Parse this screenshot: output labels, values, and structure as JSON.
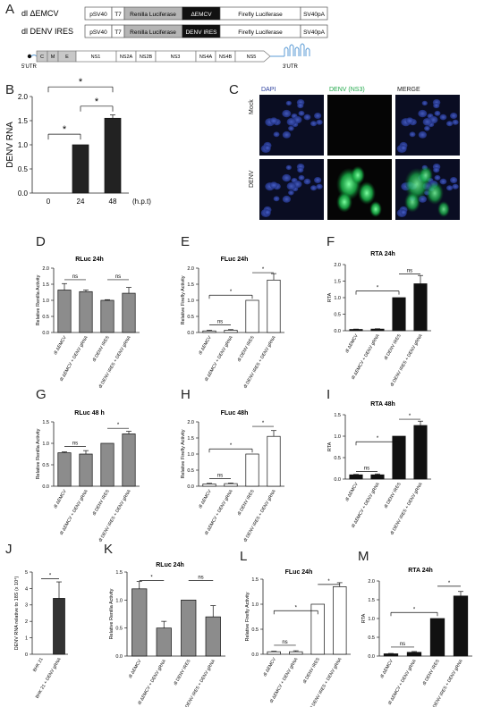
{
  "panel_letters": [
    "A",
    "B",
    "C",
    "D",
    "E",
    "F",
    "G",
    "H",
    "I",
    "J",
    "K",
    "L",
    "M"
  ],
  "constructs": {
    "row1": {
      "name": "dl ΔEMCV",
      "boxes": [
        "pSV40",
        "T7",
        "Renilla Luciferase",
        "ΔEMCV",
        "Firefly Luciferase",
        "SV40pA"
      ]
    },
    "row2": {
      "name": "dl DENV IRES",
      "boxes": [
        "pSV40",
        "T7",
        "Renilla Luciferase",
        "DENV IRES",
        "Firefly Luciferase",
        "SV40pA"
      ]
    },
    "genome": {
      "segments": [
        "C",
        "M",
        "E",
        "NS1",
        "NS2A",
        "NS2B",
        "NS3",
        "NS4A",
        "NS4B",
        "NS5"
      ],
      "utr5": "5'UTR",
      "utr3": "3'UTR"
    }
  },
  "micro": {
    "cols": [
      "DAPI",
      "DENV (NS3)",
      "MERGE"
    ],
    "rows": [
      "Mock",
      "DENV"
    ],
    "colors": {
      "dapi": "#2a3fa8",
      "ns3": "#22cc55",
      "title_blue": "#2b3f9e",
      "title_green": "#21a84a"
    }
  },
  "xlabels_dl": [
    "dl ΔEMCV",
    "dl ΔEMCV + DENV gRNA",
    "dl DENV IRES",
    "dl DENV IRES + DENV gRNA"
  ],
  "chart_data": [
    {
      "id": "B",
      "type": "bar",
      "categories": [
        "0",
        "24",
        "48"
      ],
      "values": [
        0,
        1.0,
        1.55
      ],
      "errors": [
        0,
        0,
        0.07
      ],
      "title": "",
      "ylabel": "DENV RNA",
      "xlabel": "(h.p.t)",
      "ylim": [
        0,
        2.0
      ],
      "yticks": [
        "0.0",
        "0.5",
        "1.0",
        "1.5",
        "2.0"
      ],
      "fill": "#222",
      "sig": [
        "*",
        "*",
        "*"
      ]
    },
    {
      "id": "D",
      "type": "bar",
      "title": "RLuc 24h",
      "ylabel": "Relative Renilla Activity",
      "values": [
        1.32,
        1.27,
        1.0,
        1.22
      ],
      "errors": [
        0.2,
        0.05,
        0.02,
        0.18
      ],
      "ylim": [
        0,
        2.0
      ],
      "yticks": [
        "0.0",
        "0.5",
        "1.0",
        "1.5",
        "2.0"
      ],
      "fill": "#8c8c8c",
      "sig": [
        "ns",
        "ns"
      ]
    },
    {
      "id": "E",
      "type": "bar",
      "title": "FLuc 24h",
      "ylabel": "Relative Firefly Activity",
      "values": [
        0.05,
        0.07,
        1.0,
        1.63
      ],
      "errors": [
        0.02,
        0.02,
        0,
        0.2
      ],
      "ylim": [
        0,
        2.0
      ],
      "yticks": [
        "0.0",
        "0.5",
        "1.0",
        "1.5",
        "2.0"
      ],
      "fill": "#ffffff",
      "sig": [
        "ns",
        "*",
        "*"
      ]
    },
    {
      "id": "F",
      "type": "bar",
      "title": "RTA 24h",
      "ylabel": "RTA",
      "values": [
        0.04,
        0.05,
        1.0,
        1.42
      ],
      "errors": [
        0.01,
        0.01,
        0,
        0.25
      ],
      "ylim": [
        0,
        2.0
      ],
      "yticks": [
        "0.0",
        "0.5",
        "1.0",
        "1.5",
        "2.0"
      ],
      "fill": "#111111",
      "sig": [
        "*",
        "ns"
      ]
    },
    {
      "id": "G",
      "type": "bar",
      "title": "RLuc 48 h",
      "ylabel": "Relative Renilla Activity",
      "values": [
        0.78,
        0.75,
        1.0,
        1.22
      ],
      "errors": [
        0.02,
        0.08,
        0,
        0.06
      ],
      "ylim": [
        0,
        1.5
      ],
      "yticks": [
        "0.0",
        "0.5",
        "1.0",
        "1.5"
      ],
      "fill": "#8c8c8c",
      "sig": [
        "ns",
        "*"
      ]
    },
    {
      "id": "H",
      "type": "bar",
      "title": "FLuc 48h",
      "ylabel": "Relative Firefly Activity",
      "values": [
        0.07,
        0.08,
        1.0,
        1.55
      ],
      "errors": [
        0.02,
        0.02,
        0,
        0.18
      ],
      "ylim": [
        0,
        2.0
      ],
      "yticks": [
        "0.0",
        "0.5",
        "1.0",
        "1.5",
        "2.0"
      ],
      "fill": "#ffffff",
      "sig": [
        "ns",
        "*",
        "*"
      ]
    },
    {
      "id": "I",
      "type": "bar",
      "title": "RTA 48h",
      "ylabel": "RTA",
      "values": [
        0.1,
        0.1,
        1.0,
        1.25
      ],
      "errors": [
        0.01,
        0.02,
        0,
        0.1
      ],
      "ylim": [
        0,
        1.5
      ],
      "yticks": [
        "0.0",
        "0.5",
        "1.0",
        "1.5"
      ],
      "fill": "#111111",
      "sig": [
        "ns",
        "*",
        "*"
      ]
    },
    {
      "id": "J",
      "type": "bar",
      "title": "",
      "ylabel": "DENV RNA relative to 18S (x 10⁴)",
      "categories": [
        "BHK 21",
        "BHK 21 + DENV gRNA"
      ],
      "values": [
        0,
        3.4
      ],
      "errors": [
        0,
        1.0
      ],
      "ylim": [
        0,
        5
      ],
      "yticks": [
        "0",
        "1",
        "2",
        "3",
        "4",
        "5"
      ],
      "fill": "#333333",
      "sig": [
        "*"
      ]
    },
    {
      "id": "K",
      "type": "bar",
      "title": "RLuc 24h",
      "ylabel": "Relative Renilla Activity",
      "values": [
        1.2,
        0.5,
        1.0,
        0.7
      ],
      "errors": [
        0.13,
        0.12,
        0,
        0.2
      ],
      "ylim": [
        0,
        1.5
      ],
      "yticks": [
        "0.0",
        "0.5",
        "1.0",
        "1.5"
      ],
      "fill": "#8c8c8c",
      "sig": [
        "*",
        "ns"
      ]
    },
    {
      "id": "L",
      "type": "bar",
      "title": "FLuc 24h",
      "ylabel": "Relative Firefly Activity",
      "values": [
        0.05,
        0.05,
        1.0,
        1.35
      ],
      "errors": [
        0.01,
        0.02,
        0,
        0.08
      ],
      "ylim": [
        0,
        1.5
      ],
      "yticks": [
        "0.0",
        "0.5",
        "1.0",
        "1.5"
      ],
      "fill": "#ffffff",
      "sig": [
        "ns",
        "*",
        "*"
      ]
    },
    {
      "id": "M",
      "type": "bar",
      "title": "RTA 24h",
      "ylabel": "RTA",
      "values": [
        0.06,
        0.1,
        1.0,
        1.6
      ],
      "errors": [
        0.01,
        0.02,
        0,
        0.12
      ],
      "ylim": [
        0,
        2.0
      ],
      "yticks": [
        "0.0",
        "0.5",
        "1.0",
        "1.5",
        "2.0"
      ],
      "fill": "#111111",
      "sig": [
        "ns",
        "*",
        "*"
      ]
    }
  ]
}
